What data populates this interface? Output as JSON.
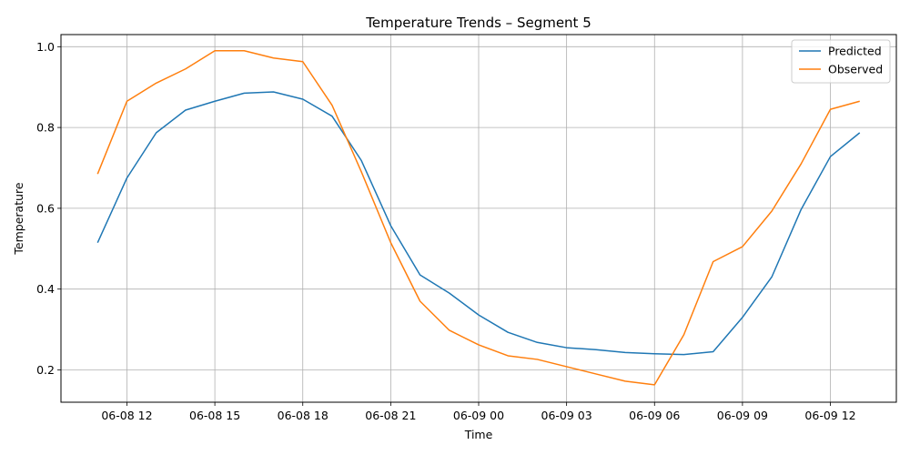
{
  "chart_data": {
    "type": "line",
    "title": "Temperature Trends – Segment 5",
    "xlabel": "Time",
    "ylabel": "Temperature",
    "x": [
      "2023-06-08 11:00",
      "2023-06-08 12:00",
      "2023-06-08 13:00",
      "2023-06-08 14:00",
      "2023-06-08 15:00",
      "2023-06-08 16:00",
      "2023-06-08 17:00",
      "2023-06-08 18:00",
      "2023-06-08 19:00",
      "2023-06-08 20:00",
      "2023-06-08 21:00",
      "2023-06-08 22:00",
      "2023-06-08 23:00",
      "2023-06-09 00:00",
      "2023-06-09 01:00",
      "2023-06-09 02:00",
      "2023-06-09 03:00",
      "2023-06-09 04:00",
      "2023-06-09 05:00",
      "2023-06-09 06:00",
      "2023-06-09 07:00",
      "2023-06-09 08:00",
      "2023-06-09 09:00",
      "2023-06-09 10:00",
      "2023-06-09 11:00",
      "2023-06-09 12:00",
      "2023-06-09 13:00"
    ],
    "series": [
      {
        "name": "Predicted",
        "color": "#1f77b4",
        "values": [
          0.515,
          0.675,
          0.787,
          0.843,
          0.865,
          0.885,
          0.888,
          0.87,
          0.828,
          0.718,
          0.557,
          0.435,
          0.39,
          0.336,
          0.293,
          0.268,
          0.255,
          0.25,
          0.243,
          0.24,
          0.238,
          0.245,
          0.33,
          0.43,
          0.597,
          0.728,
          0.787
        ]
      },
      {
        "name": "Observed",
        "color": "#ff7f0e",
        "values": [
          0.685,
          0.865,
          0.91,
          0.945,
          0.99,
          0.99,
          0.972,
          0.963,
          0.855,
          0.69,
          0.515,
          0.37,
          0.298,
          0.262,
          0.235,
          0.226,
          0.208,
          0.19,
          0.172,
          0.163,
          0.287,
          0.468,
          0.505,
          0.593,
          0.71,
          0.845,
          0.865
        ]
      }
    ],
    "xticks": [
      {
        "value": "2023-06-08 12:00",
        "label": "06-08 12"
      },
      {
        "value": "2023-06-08 15:00",
        "label": "06-08 15"
      },
      {
        "value": "2023-06-08 18:00",
        "label": "06-08 18"
      },
      {
        "value": "2023-06-08 21:00",
        "label": "06-08 21"
      },
      {
        "value": "2023-06-09 00:00",
        "label": "06-09 00"
      },
      {
        "value": "2023-06-09 03:00",
        "label": "06-09 03"
      },
      {
        "value": "2023-06-09 06:00",
        "label": "06-09 06"
      },
      {
        "value": "2023-06-09 09:00",
        "label": "06-09 09"
      },
      {
        "value": "2023-06-09 12:00",
        "label": "06-09 12"
      }
    ],
    "yticks": [
      0.2,
      0.4,
      0.6,
      0.8,
      1.0
    ],
    "ytick_labels": [
      "0.2",
      "0.4",
      "0.6",
      "0.8",
      "1.0"
    ],
    "xlim": [
      "2023-06-08 09:45",
      "2023-06-09 14:15"
    ],
    "ylim": [
      0.12,
      1.03
    ],
    "grid": true,
    "legend": "top-right"
  }
}
